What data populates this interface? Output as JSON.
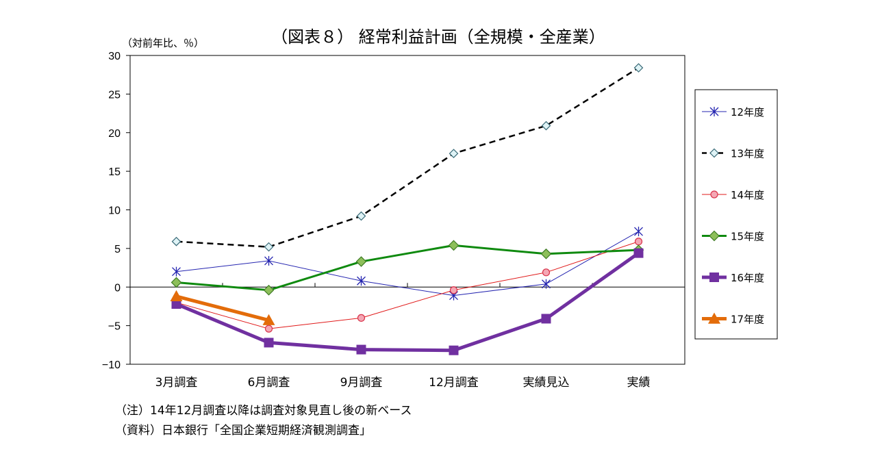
{
  "chart_data": {
    "type": "line",
    "title": "（図表８） 経常利益計画（全規模・全産業）",
    "ylabel": "（対前年比、％）",
    "xlabel": "",
    "ylim": [
      -10,
      30
    ],
    "yticks": [
      30,
      25,
      20,
      15,
      10,
      5,
      0,
      -5,
      -10
    ],
    "ytick_labels": [
      "30",
      "25",
      "20",
      "15",
      "10",
      "5",
      "0",
      "−5",
      "−10"
    ],
    "categories": [
      "3月調査",
      "6月調査",
      "9月調査",
      "12月調査",
      "実績見込",
      "実績"
    ],
    "grid": false,
    "legend_position": "right",
    "series": [
      {
        "name": "12年度",
        "color": "#2424b0",
        "marker": "asterisk",
        "dash": "",
        "width": 1,
        "values": [
          2.0,
          3.4,
          0.8,
          -1.1,
          0.4,
          7.2
        ]
      },
      {
        "name": "13年度",
        "color": "#000000",
        "marker": "diamond-open",
        "dash": "9,6",
        "width": 2.5,
        "values": [
          5.9,
          5.2,
          9.2,
          17.3,
          20.9,
          28.4
        ]
      },
      {
        "name": "14年度",
        "color": "#e01818",
        "marker": "circle",
        "dash": "",
        "width": 1,
        "values": [
          -2.0,
          -5.4,
          -4.0,
          -0.4,
          1.9,
          5.9
        ]
      },
      {
        "name": "15年度",
        "color": "#0f8a0f",
        "marker": "diamond",
        "dash": "",
        "width": 3,
        "values": [
          0.6,
          -0.4,
          3.3,
          5.4,
          4.3,
          4.8
        ]
      },
      {
        "name": "16年度",
        "color": "#7030a0",
        "marker": "square",
        "dash": "",
        "width": 5,
        "values": [
          -2.2,
          -7.2,
          -8.1,
          -8.2,
          -4.1,
          4.4
        ]
      },
      {
        "name": "17年度",
        "color": "#e36c0a",
        "marker": "triangle",
        "dash": "",
        "width": 5,
        "values": [
          -1.2,
          -4.3,
          null,
          null,
          null,
          null
        ]
      }
    ]
  },
  "notes": {
    "note1": "（注）14年12月調査以降は調査対象見直し後の新ベース",
    "note2": "（資料）日本銀行「全国企業短期経済観測調査」"
  }
}
